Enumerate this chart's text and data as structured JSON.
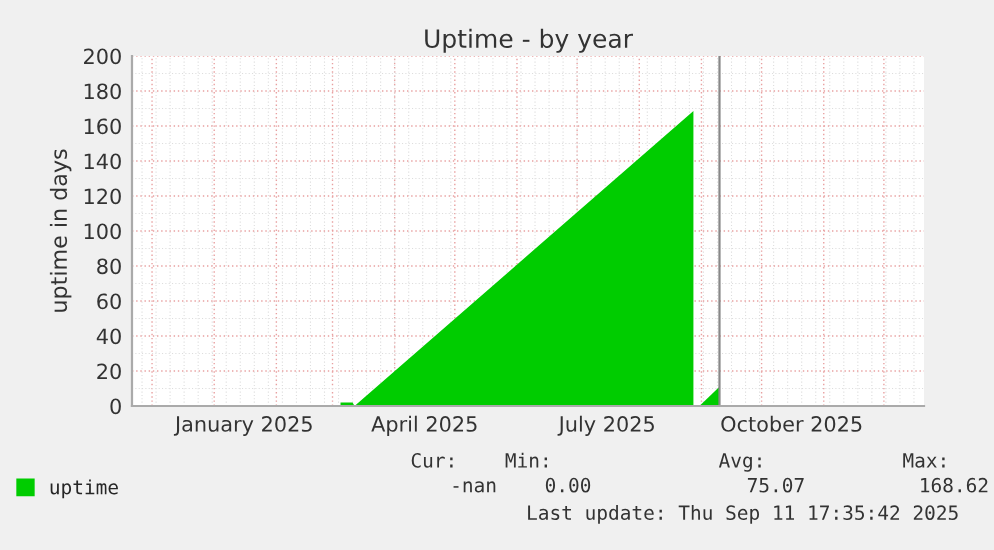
{
  "chart_data": {
    "type": "area",
    "title": "Uptime - by year",
    "ylabel": "uptime in days",
    "series": [
      {
        "name": "uptime",
        "color": "#00cc00",
        "x": [
          "2025-03-05",
          "2025-03-11",
          "2025-03-12",
          "2025-08-28",
          "2025-08-29",
          "2025-08-31",
          "2025-09-10"
        ],
        "values": [
          2,
          2,
          0,
          168.6,
          null,
          0,
          11
        ]
      }
    ],
    "xlim": [
      "2024-11-21",
      "2025-12-21"
    ],
    "xticks": [
      {
        "value": "2025-01-16",
        "label": "January 2025"
      },
      {
        "value": "2025-04-16",
        "label": "April 2025"
      },
      {
        "value": "2025-07-16",
        "label": "July 2025"
      },
      {
        "value": "2025-10-16",
        "label": "October 2025"
      }
    ],
    "ylim": [
      0,
      200
    ],
    "yticks": [
      0,
      20,
      40,
      60,
      80,
      100,
      120,
      140,
      160,
      180,
      200
    ],
    "ref_lines": [
      {
        "axis": "x",
        "value": "2025-09-10",
        "color": "#888888"
      }
    ],
    "grid": true,
    "legend": "bottom",
    "annotations": [
      "Cur:",
      "Min:",
      "Avg:",
      "Max:",
      "-nan",
      "0.00",
      "75.07",
      "168.62",
      "Last update: Thu Sep 11 17:35:42 2025"
    ]
  }
}
